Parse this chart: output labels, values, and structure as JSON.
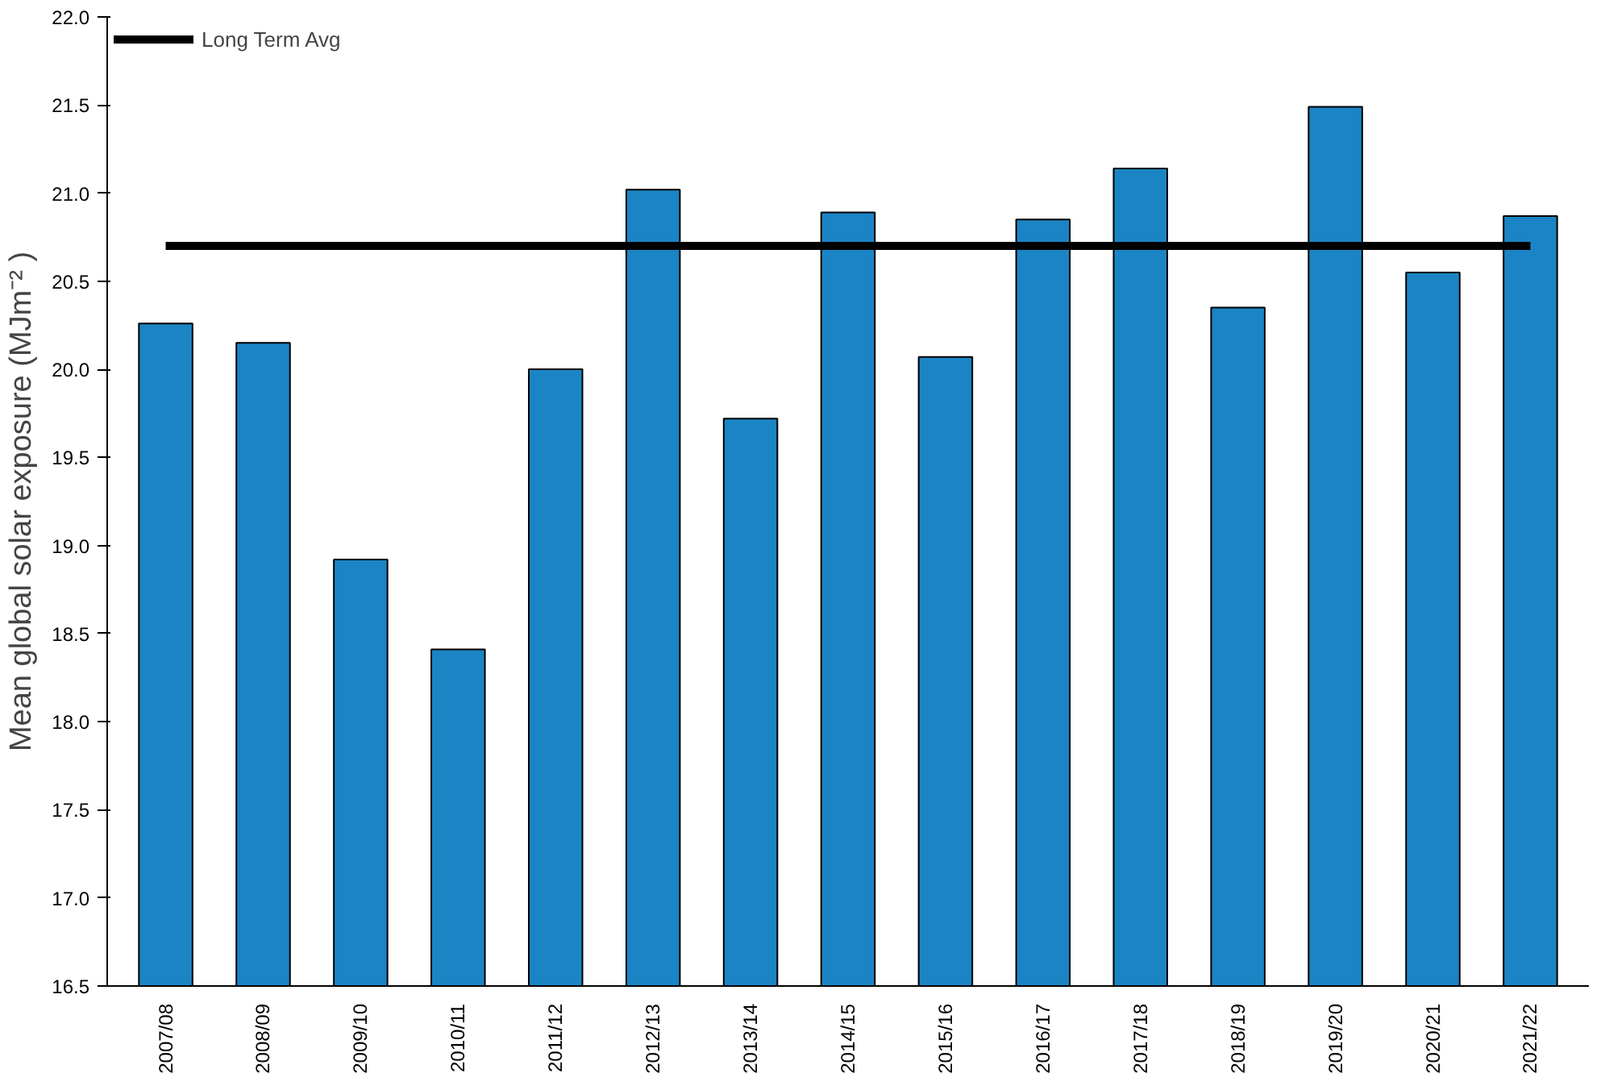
{
  "chart_data": {
    "type": "bar",
    "ylabel": "Mean global solar exposure (MJm⁻² )",
    "categories": [
      "2007/08",
      "2008/09",
      "2009/10",
      "2010/11",
      "2011/12",
      "2012/13",
      "2013/14",
      "2014/15",
      "2015/16",
      "2016/17",
      "2017/18",
      "2018/19",
      "2019/20",
      "2020/21",
      "2021/22"
    ],
    "series": [
      {
        "color": "#1b84c4",
        "values": [
          20.26,
          20.15,
          18.92,
          18.41,
          20.0,
          21.02,
          19.72,
          20.89,
          20.07,
          20.85,
          21.14,
          20.35,
          21.49,
          20.55,
          20.87
        ]
      },
      {
        "type": "line",
        "name": "Long Term Avg",
        "color": "#000000",
        "values": [
          20.7,
          20.7,
          20.7,
          20.7,
          20.7,
          20.7,
          20.7,
          20.7,
          20.7,
          20.7,
          20.7,
          20.7,
          20.7,
          20.7,
          20.7
        ]
      }
    ],
    "ylim": [
      16.5,
      22.0
    ],
    "yticks": [
      {
        "value": 16.5,
        "label": "16.5"
      },
      {
        "value": 17,
        "label": "17.0"
      },
      {
        "value": 17.5,
        "label": "17.5"
      },
      {
        "value": 18,
        "label": "18.0"
      },
      {
        "value": 18.5,
        "label": "18.5"
      },
      {
        "value": 19,
        "label": "19.0"
      },
      {
        "value": 19.5,
        "label": "19.5"
      },
      {
        "value": 20,
        "label": "20.0"
      },
      {
        "value": 20.5,
        "label": "20.5"
      },
      {
        "value": 21,
        "label": "21.0"
      },
      {
        "value": 21.5,
        "label": "21.5"
      },
      {
        "value": 22,
        "label": "22.0"
      }
    ],
    "legend": "top left",
    "grid": false,
    "marker": "none",
    "line_style": "solid"
  }
}
